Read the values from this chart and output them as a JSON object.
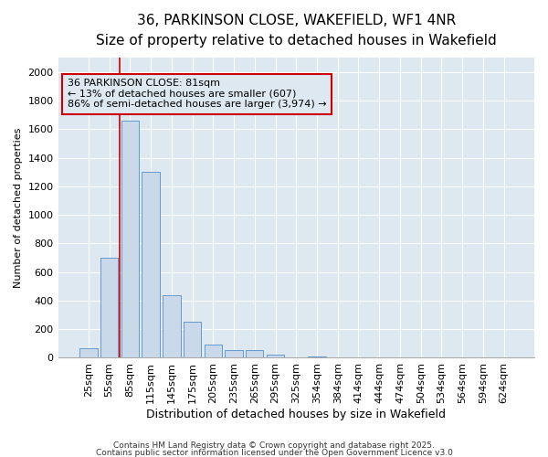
{
  "title1": "36, PARKINSON CLOSE, WAKEFIELD, WF1 4NR",
  "title2": "Size of property relative to detached houses in Wakefield",
  "xlabel": "Distribution of detached houses by size in Wakefield",
  "ylabel": "Number of detached properties",
  "categories": [
    "25sqm",
    "55sqm",
    "85sqm",
    "115sqm",
    "145sqm",
    "175sqm",
    "205sqm",
    "235sqm",
    "265sqm",
    "295sqm",
    "325sqm",
    "354sqm",
    "384sqm",
    "414sqm",
    "444sqm",
    "474sqm",
    "504sqm",
    "534sqm",
    "564sqm",
    "594sqm",
    "624sqm"
  ],
  "values": [
    65,
    700,
    1660,
    1300,
    440,
    255,
    90,
    55,
    55,
    25,
    5,
    10,
    0,
    0,
    0,
    0,
    0,
    0,
    0,
    0,
    0
  ],
  "bar_color": "#c9d9ea",
  "bar_edgecolor": "#6699cc",
  "axes_facecolor": "#dde8f0",
  "figure_facecolor": "#ffffff",
  "grid_color": "#ffffff",
  "ylim": [
    0,
    2100
  ],
  "yticks": [
    0,
    200,
    400,
    600,
    800,
    1000,
    1200,
    1400,
    1600,
    1800,
    2000
  ],
  "vline_x": 1.5,
  "vline_color": "#cc0000",
  "annotation_text": "36 PARKINSON CLOSE: 81sqm\n← 13% of detached houses are smaller (607)\n86% of semi-detached houses are larger (3,974) →",
  "annotation_box_color": "#cc0000",
  "footer1": "Contains HM Land Registry data © Crown copyright and database right 2025.",
  "footer2": "Contains public sector information licensed under the Open Government Licence v3.0",
  "title_fontsize": 11,
  "subtitle_fontsize": 9.5,
  "xlabel_fontsize": 9,
  "ylabel_fontsize": 8,
  "tick_fontsize": 8,
  "annotation_fontsize": 8,
  "footer_fontsize": 6.5
}
